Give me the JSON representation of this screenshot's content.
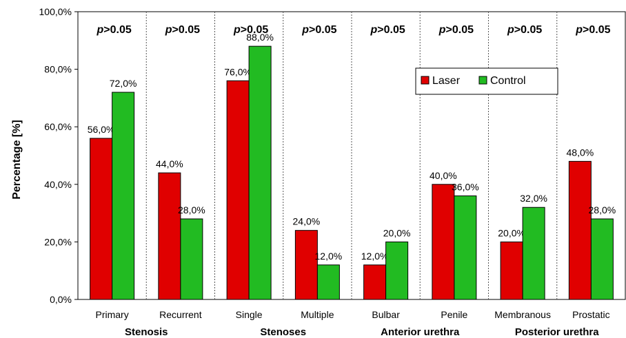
{
  "chart_data": {
    "type": "bar",
    "ylabel": "Percentage [%]",
    "ylim": [
      0,
      100
    ],
    "y_ticks": [
      "0,0%",
      "20,0%",
      "40,0%",
      "60,0%",
      "80,0%",
      "100,0%"
    ],
    "grid": false,
    "legend_position": "top-right",
    "categories": [
      "Primary",
      "Recurrent",
      "Single",
      "Multiple",
      "Bulbar",
      "Penile",
      "Membranous",
      "Prostatic"
    ],
    "groups": [
      "Stenosis",
      "Stenoses",
      "Anterior urethra",
      "Posterior urethra"
    ],
    "p_value_prefix": "p",
    "p_value_suffix": ">0.05",
    "series": [
      {
        "name": "Laser",
        "color": "#e00000",
        "values": [
          56.0,
          44.0,
          76.0,
          24.0,
          12.0,
          40.0,
          20.0,
          48.0
        ],
        "labels": [
          "56,0%",
          "44,0%",
          "76,0%",
          "24,0%",
          "12,0%",
          "40,0%",
          "20,0%",
          "48,0%"
        ]
      },
      {
        "name": "Control",
        "color": "#22bb22",
        "values": [
          72.0,
          28.0,
          88.0,
          12.0,
          20.0,
          36.0,
          32.0,
          28.0
        ],
        "labels": [
          "72,0%",
          "28,0%",
          "88,0%",
          "12,0%",
          "20,0%",
          "36,0%",
          "32,0%",
          "28,0%"
        ]
      }
    ]
  }
}
